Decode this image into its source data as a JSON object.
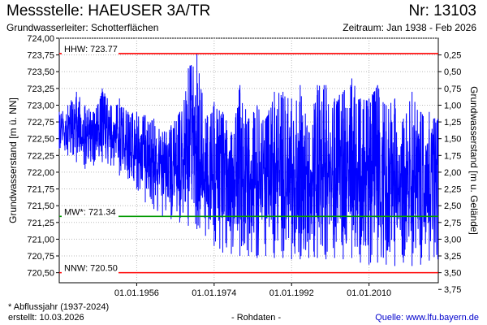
{
  "header": {
    "title": "Messstelle: HAEUSER 3A/TR",
    "number": "Nr: 13103",
    "aquifer": "Grundwasserleiter:   Schotterflächen",
    "period": "Zeitraum: Jan 1938 - Feb 2026"
  },
  "footer": {
    "note": "* Abflussjahr (1937-2024)",
    "created": "erstellt:  10.03.2026",
    "center": "- Rohdaten -",
    "source": "Quelle: www.lfu.bayern.de"
  },
  "colors": {
    "series": "#0000ff",
    "extreme": "#ff0000",
    "mean": "#009900",
    "grid": "#bbbbbb"
  },
  "chart_data": {
    "type": "line",
    "ylabel_left": "Grundwasserstand [m ü. NN]",
    "ylabel_right": "Grundwasserstand [m u. Gelände]",
    "xlim": [
      "1938-01",
      "2026-02"
    ],
    "ylim": [
      720.35,
      724.0
    ],
    "left_ticks": [
      "724,00",
      "723,75",
      "723,50",
      "723,25",
      "723,00",
      "722,75",
      "722,50",
      "722,25",
      "722,00",
      "721,75",
      "721,50",
      "721,25",
      "721,00",
      "720,75",
      "720,50"
    ],
    "right_ticks": [
      "0,25",
      "0,50",
      "0,75",
      "1,00",
      "1,25",
      "1,50",
      "1,75",
      "2,00",
      "2,25",
      "2,50",
      "2,75",
      "3,00",
      "3,25",
      "3,50",
      "3,75"
    ],
    "x_ticks": [
      "01.01.1956",
      "01.01.1974",
      "01.01.1992",
      "01.01.2010"
    ],
    "reference_lines": [
      {
        "label": "HHW: 723.77",
        "value": 723.77
      },
      {
        "label": "MW*: 721.34",
        "value": 721.34
      },
      {
        "label": "NNW: 720.50",
        "value": 720.5
      }
    ],
    "series": [
      {
        "x": [
          1938,
          1940,
          1942,
          1944,
          1946,
          1948,
          1950,
          1952,
          1954,
          1956,
          1958,
          1960,
          1962,
          1964,
          1966,
          1968,
          1970,
          1972,
          1974,
          1976,
          1978,
          1980,
          1982,
          1984,
          1986,
          1988,
          1990,
          1992,
          1994,
          1996,
          1998,
          2000,
          2002,
          2004,
          2006,
          2008,
          2010,
          2012,
          2014,
          2016,
          2018,
          2020,
          2022,
          2024,
          2026
        ],
        "low": [
          722.35,
          722.25,
          722.15,
          722.05,
          722.1,
          722.15,
          722.1,
          721.95,
          721.9,
          721.75,
          721.55,
          721.45,
          721.35,
          721.3,
          721.25,
          721.2,
          721.15,
          721.05,
          720.9,
          720.8,
          720.78,
          720.75,
          720.75,
          720.72,
          720.75,
          720.72,
          720.72,
          720.7,
          720.7,
          720.72,
          720.72,
          720.7,
          720.72,
          720.7,
          720.72,
          720.65,
          720.62,
          720.65,
          720.62,
          720.6,
          720.65,
          720.6,
          720.62,
          720.68,
          720.7
        ],
        "high": [
          722.9,
          723.0,
          723.2,
          723.0,
          722.9,
          723.25,
          723.0,
          723.1,
          722.9,
          722.9,
          722.85,
          722.8,
          722.6,
          722.7,
          722.9,
          723.55,
          723.77,
          722.8,
          723.05,
          722.9,
          722.6,
          723.3,
          722.8,
          723.0,
          722.8,
          723.2,
          723.2,
          723.1,
          723.3,
          722.6,
          723.3,
          723.3,
          723.1,
          723.2,
          723.4,
          723.1,
          723.1,
          723.3,
          723.0,
          723.1,
          722.8,
          723.2,
          722.9,
          722.9,
          722.8
        ]
      }
    ]
  }
}
